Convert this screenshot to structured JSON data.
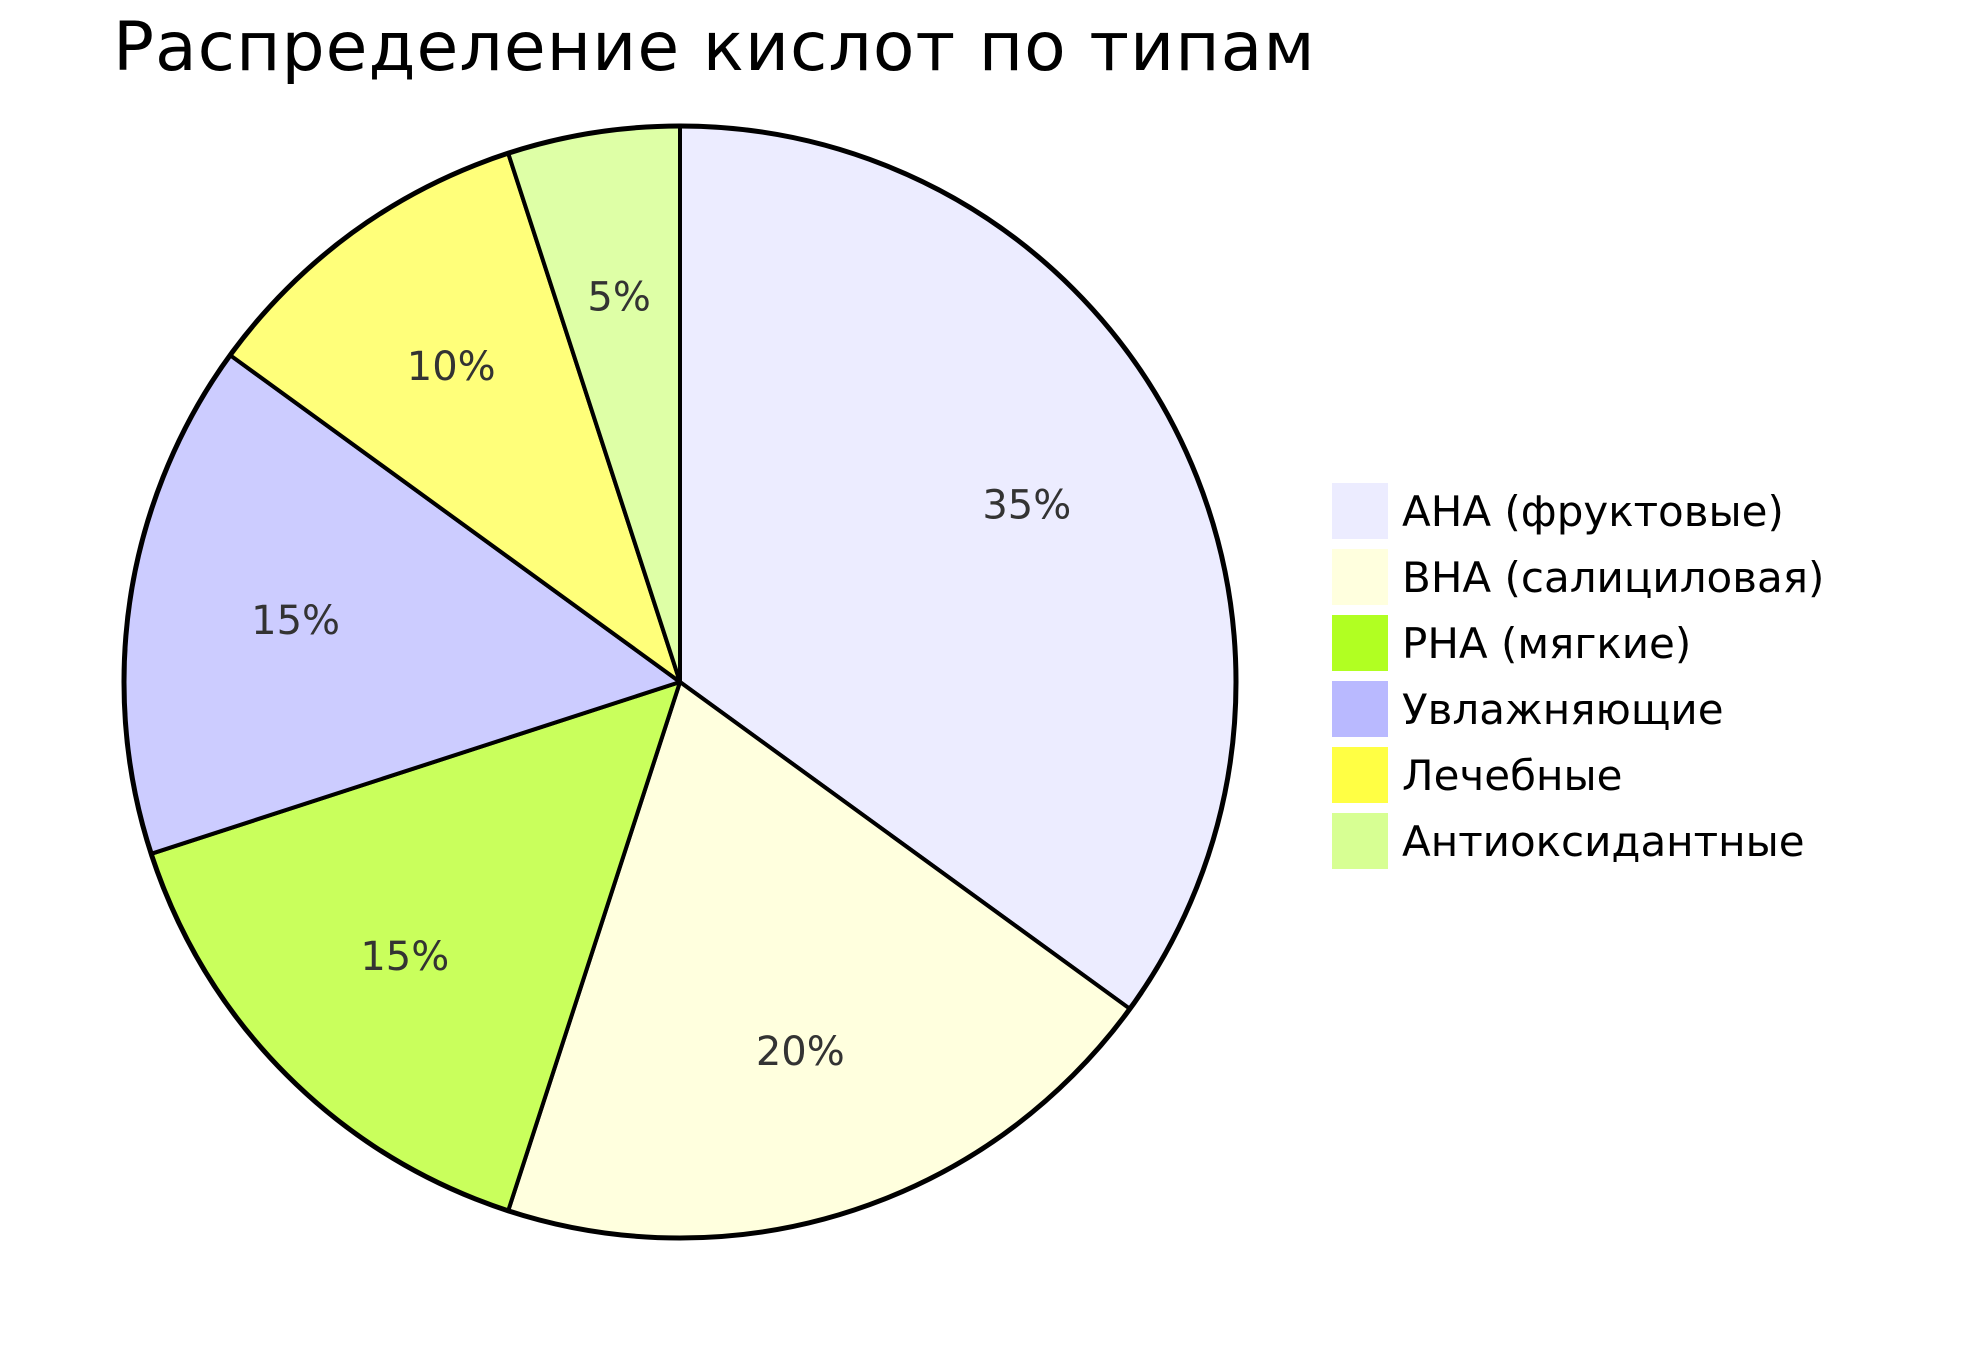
{
  "chart_data": {
    "type": "pie",
    "title": "Распределение кислот по типам",
    "slices": [
      {
        "label": "AHA (фруктовые)",
        "value": 35,
        "display": "35%",
        "color": "#ECECFF"
      },
      {
        "label": "BHA (салициловая)",
        "value": 20,
        "display": "20%",
        "color": "#FFFFDE"
      },
      {
        "label": "PHA (мягкие)",
        "value": 15,
        "display": "15%",
        "color": "#C9FF5C"
      },
      {
        "label": "Увлажняющие",
        "value": 15,
        "display": "15%",
        "color": "#CCCCFF"
      },
      {
        "label": "Лечебные",
        "value": 10,
        "display": "10%",
        "color": "#FFFF7A"
      },
      {
        "label": "Антиоксидантные",
        "value": 5,
        "display": "5%",
        "color": "#DEFFA6"
      }
    ],
    "legend_colors": [
      "#ECECFF",
      "#FFFFDE",
      "#B1FF22",
      "#B9B9FF",
      "#FFFF44",
      "#D7FF93"
    ],
    "legend_position": "right",
    "start_angle": "top",
    "direction": "clockwise"
  }
}
